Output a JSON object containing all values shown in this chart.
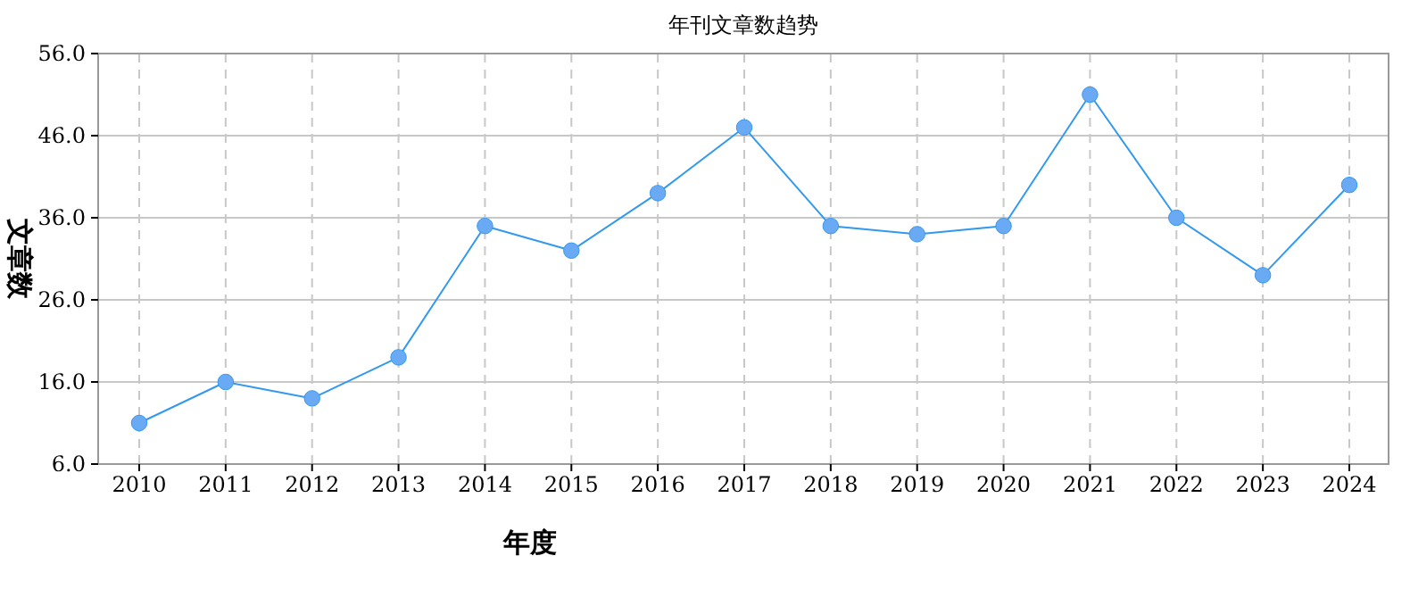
{
  "chart_data": {
    "type": "line",
    "title": "年刊文章数趋势",
    "xlabel": "年度",
    "ylabel": "文章数",
    "categories": [
      "2010",
      "2011",
      "2012",
      "2013",
      "2014",
      "2015",
      "2016",
      "2017",
      "2018",
      "2019",
      "2020",
      "2021",
      "2022",
      "2023",
      "2024"
    ],
    "series": [
      {
        "color": "#3399ee",
        "values": [
          11,
          16,
          14,
          19,
          35,
          32,
          39,
          47,
          35,
          34,
          35,
          51,
          36,
          29,
          40
        ]
      }
    ],
    "ylim": [
      6,
      56
    ],
    "yticks": [
      {
        "value": 6,
        "label": "6.0"
      },
      {
        "value": 16,
        "label": "16.0"
      },
      {
        "value": 26,
        "label": "26.0"
      },
      {
        "value": 36,
        "label": "36.0"
      },
      {
        "value": 46,
        "label": "46.0"
      },
      {
        "value": 56,
        "label": "56.0"
      }
    ],
    "grid": true,
    "marker": "circle",
    "line_style": "solid"
  }
}
